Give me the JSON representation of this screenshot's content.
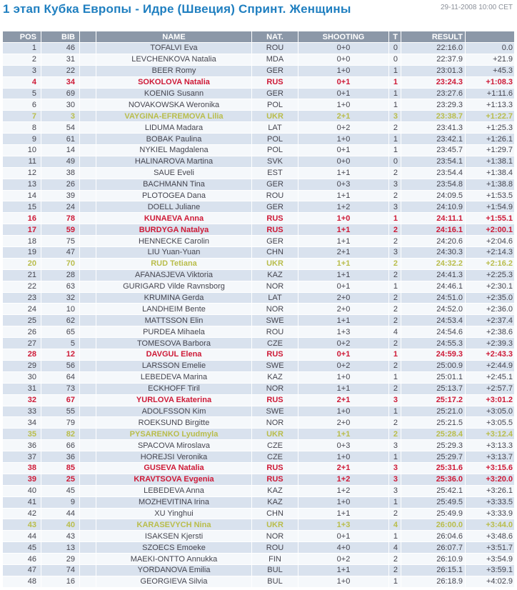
{
  "header": {
    "title": "1 этап Кубка Европы - Идре (Швеция) Спринт. Женщины",
    "datetime": "29-11-2008 10:00 CET"
  },
  "colors": {
    "title_blue": "#1f7fc0",
    "header_bg": "#8c98a8",
    "row_odd": "#d9e2ee",
    "row_even": "#f5f8fb",
    "text_normal": "#45454f",
    "highlight_rus_red": "#ce1a37",
    "highlight_ukr_olive": "#b9bd4b"
  },
  "table": {
    "columns": {
      "pos": "POS",
      "bib": "BIB",
      "spacer": "",
      "name": "NAME",
      "nat": "NAT.",
      "shooting": "SHOOTING",
      "t": "T",
      "result": "RESULT",
      "diff": ""
    },
    "rows": [
      {
        "pos": "1",
        "bib": "46",
        "name": "TOFALVI Eva",
        "nat": "ROU",
        "shooting": "0+0",
        "t": "0",
        "result": "22:16.0",
        "diff": "0.0",
        "highlight": ""
      },
      {
        "pos": "2",
        "bib": "31",
        "name": "LEVCHENKOVA Natalia",
        "nat": "MDA",
        "shooting": "0+0",
        "t": "0",
        "result": "22:37.9",
        "diff": "+21.9",
        "highlight": ""
      },
      {
        "pos": "3",
        "bib": "22",
        "name": "BEER Romy",
        "nat": "GER",
        "shooting": "1+0",
        "t": "1",
        "result": "23:01.3",
        "diff": "+45.3",
        "highlight": ""
      },
      {
        "pos": "4",
        "bib": "34",
        "name": "SOKOLOVA Natalia",
        "nat": "RUS",
        "shooting": "0+1",
        "t": "1",
        "result": "23:24.3",
        "diff": "+1:08.3",
        "highlight": "red"
      },
      {
        "pos": "5",
        "bib": "69",
        "name": "KOENIG Susann",
        "nat": "GER",
        "shooting": "0+1",
        "t": "1",
        "result": "23:27.6",
        "diff": "+1:11.6",
        "highlight": ""
      },
      {
        "pos": "6",
        "bib": "30",
        "name": "NOVAKOWSKA Weronika",
        "nat": "POL",
        "shooting": "1+0",
        "t": "1",
        "result": "23:29.3",
        "diff": "+1:13.3",
        "highlight": ""
      },
      {
        "pos": "7",
        "bib": "3",
        "name": "VAYGINA-EFREMOVA Lilia",
        "nat": "UKR",
        "shooting": "2+1",
        "t": "3",
        "result": "23:38.7",
        "diff": "+1:22.7",
        "highlight": "olive"
      },
      {
        "pos": "8",
        "bib": "54",
        "name": "LIDUMA Madara",
        "nat": "LAT",
        "shooting": "0+2",
        "t": "2",
        "result": "23:41.3",
        "diff": "+1:25.3",
        "highlight": ""
      },
      {
        "pos": "9",
        "bib": "61",
        "name": "BOBAK Paulina",
        "nat": "POL",
        "shooting": "1+0",
        "t": "1",
        "result": "23:42.1",
        "diff": "+1:26.1",
        "highlight": ""
      },
      {
        "pos": "10",
        "bib": "14",
        "name": "NYKIEL Magdalena",
        "nat": "POL",
        "shooting": "0+1",
        "t": "1",
        "result": "23:45.7",
        "diff": "+1:29.7",
        "highlight": ""
      },
      {
        "pos": "11",
        "bib": "49",
        "name": "HALINAROVA Martina",
        "nat": "SVK",
        "shooting": "0+0",
        "t": "0",
        "result": "23:54.1",
        "diff": "+1:38.1",
        "highlight": ""
      },
      {
        "pos": "12",
        "bib": "38",
        "name": "SAUE Eveli",
        "nat": "EST",
        "shooting": "1+1",
        "t": "2",
        "result": "23:54.4",
        "diff": "+1:38.4",
        "highlight": ""
      },
      {
        "pos": "13",
        "bib": "26",
        "name": "BACHMANN Tina",
        "nat": "GER",
        "shooting": "0+3",
        "t": "3",
        "result": "23:54.8",
        "diff": "+1:38.8",
        "highlight": ""
      },
      {
        "pos": "14",
        "bib": "39",
        "name": "PLOTOGEA Dana",
        "nat": "ROU",
        "shooting": "1+1",
        "t": "2",
        "result": "24:09.5",
        "diff": "+1:53.5",
        "highlight": ""
      },
      {
        "pos": "15",
        "bib": "24",
        "name": "DOELL Juliane",
        "nat": "GER",
        "shooting": "1+2",
        "t": "3",
        "result": "24:10.9",
        "diff": "+1:54.9",
        "highlight": ""
      },
      {
        "pos": "16",
        "bib": "78",
        "name": "KUNAEVA Anna",
        "nat": "RUS",
        "shooting": "1+0",
        "t": "1",
        "result": "24:11.1",
        "diff": "+1:55.1",
        "highlight": "red"
      },
      {
        "pos": "17",
        "bib": "59",
        "name": "BURDYGA Natalya",
        "nat": "RUS",
        "shooting": "1+1",
        "t": "2",
        "result": "24:16.1",
        "diff": "+2:00.1",
        "highlight": "red"
      },
      {
        "pos": "18",
        "bib": "75",
        "name": "HENNECKE Carolin",
        "nat": "GER",
        "shooting": "1+1",
        "t": "2",
        "result": "24:20.6",
        "diff": "+2:04.6",
        "highlight": ""
      },
      {
        "pos": "19",
        "bib": "47",
        "name": "LIU Yuan-Yuan",
        "nat": "CHN",
        "shooting": "2+1",
        "t": "3",
        "result": "24:30.3",
        "diff": "+2:14.3",
        "highlight": ""
      },
      {
        "pos": "20",
        "bib": "70",
        "name": "RUD Tetiana",
        "nat": "UKR",
        "shooting": "1+1",
        "t": "2",
        "result": "24:32.2",
        "diff": "+2:16.2",
        "highlight": "olive"
      },
      {
        "pos": "21",
        "bib": "28",
        "name": "AFANASJEVA Viktoria",
        "nat": "KAZ",
        "shooting": "1+1",
        "t": "2",
        "result": "24:41.3",
        "diff": "+2:25.3",
        "highlight": ""
      },
      {
        "pos": "22",
        "bib": "63",
        "name": "GURIGARD Vilde Ravnsborg",
        "nat": "NOR",
        "shooting": "0+1",
        "t": "1",
        "result": "24:46.1",
        "diff": "+2:30.1",
        "highlight": ""
      },
      {
        "pos": "23",
        "bib": "32",
        "name": "KRUMINA Gerda",
        "nat": "LAT",
        "shooting": "2+0",
        "t": "2",
        "result": "24:51.0",
        "diff": "+2:35.0",
        "highlight": ""
      },
      {
        "pos": "24",
        "bib": "10",
        "name": "LANDHEIM Bente",
        "nat": "NOR",
        "shooting": "2+0",
        "t": "2",
        "result": "24:52.0",
        "diff": "+2:36.0",
        "highlight": ""
      },
      {
        "pos": "25",
        "bib": "62",
        "name": "MATTSSON Elin",
        "nat": "SWE",
        "shooting": "1+1",
        "t": "2",
        "result": "24:53.4",
        "diff": "+2:37.4",
        "highlight": ""
      },
      {
        "pos": "26",
        "bib": "65",
        "name": "PURDEA Mihaela",
        "nat": "ROU",
        "shooting": "1+3",
        "t": "4",
        "result": "24:54.6",
        "diff": "+2:38.6",
        "highlight": ""
      },
      {
        "pos": "27",
        "bib": "5",
        "name": "TOMESOVA Barbora",
        "nat": "CZE",
        "shooting": "0+2",
        "t": "2",
        "result": "24:55.3",
        "diff": "+2:39.3",
        "highlight": ""
      },
      {
        "pos": "28",
        "bib": "12",
        "name": "DAVGUL Elena",
        "nat": "RUS",
        "shooting": "0+1",
        "t": "1",
        "result": "24:59.3",
        "diff": "+2:43.3",
        "highlight": "red"
      },
      {
        "pos": "29",
        "bib": "56",
        "name": "LARSSON Emelie",
        "nat": "SWE",
        "shooting": "0+2",
        "t": "2",
        "result": "25:00.9",
        "diff": "+2:44.9",
        "highlight": ""
      },
      {
        "pos": "30",
        "bib": "64",
        "name": "LEBEDEVA Marina",
        "nat": "KAZ",
        "shooting": "1+0",
        "t": "1",
        "result": "25:01.1",
        "diff": "+2:45.1",
        "highlight": ""
      },
      {
        "pos": "31",
        "bib": "73",
        "name": "ECKHOFF Tiril",
        "nat": "NOR",
        "shooting": "1+1",
        "t": "2",
        "result": "25:13.7",
        "diff": "+2:57.7",
        "highlight": ""
      },
      {
        "pos": "32",
        "bib": "67",
        "name": "YURLOVA Ekaterina",
        "nat": "RUS",
        "shooting": "2+1",
        "t": "3",
        "result": "25:17.2",
        "diff": "+3:01.2",
        "highlight": "red"
      },
      {
        "pos": "33",
        "bib": "55",
        "name": "ADOLFSSON Kim",
        "nat": "SWE",
        "shooting": "1+0",
        "t": "1",
        "result": "25:21.0",
        "diff": "+3:05.0",
        "highlight": ""
      },
      {
        "pos": "34",
        "bib": "79",
        "name": "ROEKSUND Birgitte",
        "nat": "NOR",
        "shooting": "2+0",
        "t": "2",
        "result": "25:21.5",
        "diff": "+3:05.5",
        "highlight": ""
      },
      {
        "pos": "35",
        "bib": "82",
        "name": "PYSARENKO Lyudmyla",
        "nat": "UKR",
        "shooting": "1+1",
        "t": "2",
        "result": "25:28.4",
        "diff": "+3:12.4",
        "highlight": "olive"
      },
      {
        "pos": "36",
        "bib": "66",
        "name": "SPACOVA Miroslava",
        "nat": "CZE",
        "shooting": "0+3",
        "t": "3",
        "result": "25:29.3",
        "diff": "+3:13.3",
        "highlight": ""
      },
      {
        "pos": "37",
        "bib": "36",
        "name": "HOREJSI Veronika",
        "nat": "CZE",
        "shooting": "1+0",
        "t": "1",
        "result": "25:29.7",
        "diff": "+3:13.7",
        "highlight": ""
      },
      {
        "pos": "38",
        "bib": "85",
        "name": "GUSEVA Natalia",
        "nat": "RUS",
        "shooting": "2+1",
        "t": "3",
        "result": "25:31.6",
        "diff": "+3:15.6",
        "highlight": "red"
      },
      {
        "pos": "39",
        "bib": "25",
        "name": "KRAVTSOVA Evgenia",
        "nat": "RUS",
        "shooting": "1+2",
        "t": "3",
        "result": "25:36.0",
        "diff": "+3:20.0",
        "highlight": "red"
      },
      {
        "pos": "40",
        "bib": "45",
        "name": "LEBEDEVA Anna",
        "nat": "KAZ",
        "shooting": "1+2",
        "t": "3",
        "result": "25:42.1",
        "diff": "+3:26.1",
        "highlight": ""
      },
      {
        "pos": "41",
        "bib": "9",
        "name": "MOZHEVITINA Irina",
        "nat": "KAZ",
        "shooting": "1+0",
        "t": "1",
        "result": "25:49.5",
        "diff": "+3:33.5",
        "highlight": ""
      },
      {
        "pos": "42",
        "bib": "44",
        "name": "XU Yinghui",
        "nat": "CHN",
        "shooting": "1+1",
        "t": "2",
        "result": "25:49.9",
        "diff": "+3:33.9",
        "highlight": ""
      },
      {
        "pos": "43",
        "bib": "40",
        "name": "KARASEVYCH Nina",
        "nat": "UKR",
        "shooting": "1+3",
        "t": "4",
        "result": "26:00.0",
        "diff": "+3:44.0",
        "highlight": "olive"
      },
      {
        "pos": "44",
        "bib": "43",
        "name": "ISAKSEN Kjersti",
        "nat": "NOR",
        "shooting": "0+1",
        "t": "1",
        "result": "26:04.6",
        "diff": "+3:48.6",
        "highlight": ""
      },
      {
        "pos": "45",
        "bib": "13",
        "name": "SZOECS Emoeke",
        "nat": "ROU",
        "shooting": "4+0",
        "t": "4",
        "result": "26:07.7",
        "diff": "+3:51.7",
        "highlight": ""
      },
      {
        "pos": "46",
        "bib": "29",
        "name": "MAEKI-ONTTO Annukka",
        "nat": "FIN",
        "shooting": "0+2",
        "t": "2",
        "result": "26:10.9",
        "diff": "+3:54.9",
        "highlight": ""
      },
      {
        "pos": "47",
        "bib": "74",
        "name": "YORDANOVA Emilia",
        "nat": "BUL",
        "shooting": "1+1",
        "t": "2",
        "result": "26:15.1",
        "diff": "+3:59.1",
        "highlight": ""
      },
      {
        "pos": "48",
        "bib": "16",
        "name": "GEORGIEVA Silvia",
        "nat": "BUL",
        "shooting": "1+0",
        "t": "1",
        "result": "26:18.9",
        "diff": "+4:02.9",
        "highlight": ""
      }
    ]
  }
}
